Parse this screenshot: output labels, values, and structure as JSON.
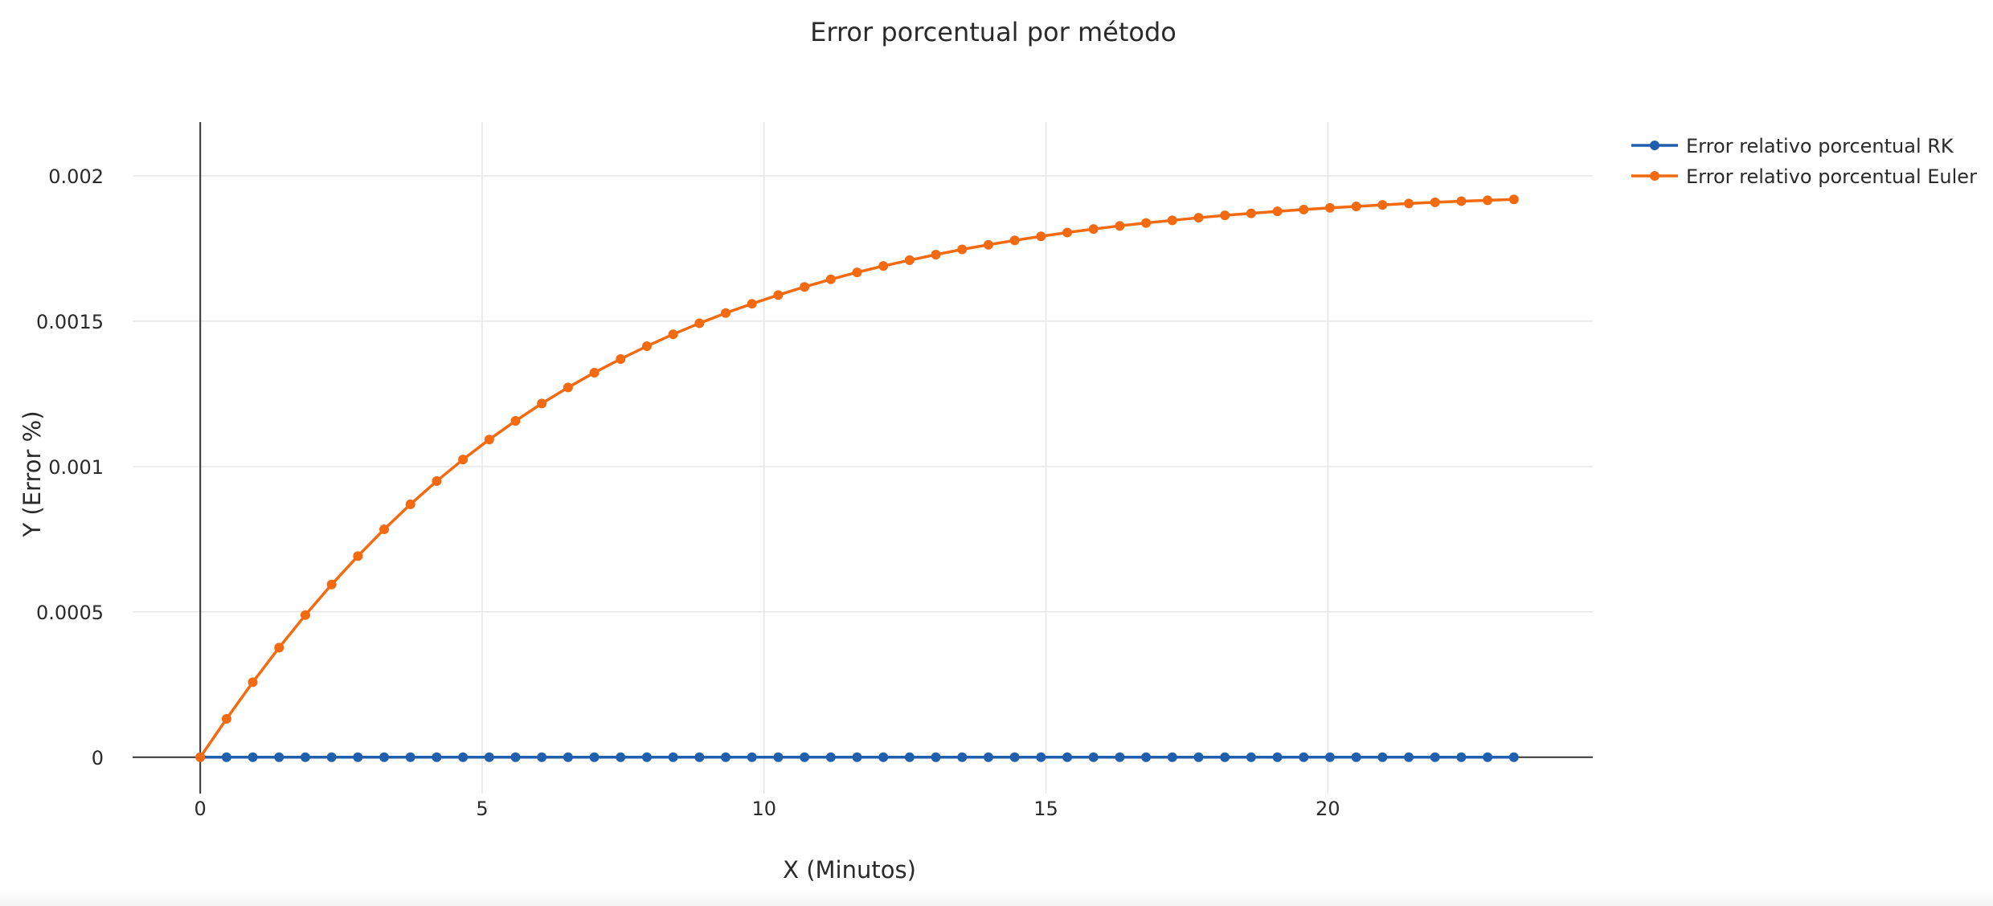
{
  "chart_data": {
    "type": "line",
    "title": "Error porcentual por método",
    "xlabel": "X (Minutos)",
    "ylabel": "Y (Error %)",
    "xlim": [
      -1.2,
      24.7
    ],
    "ylim": [
      -0.000125,
      0.002185
    ],
    "x_ticks": [
      0,
      5,
      10,
      15,
      20
    ],
    "x_tick_labels": [
      "0",
      "5",
      "10",
      "15",
      "20"
    ],
    "y_ticks": [
      0,
      0.0005,
      0.001,
      0.0015,
      0.002
    ],
    "y_tick_labels": [
      "0",
      "0.0005",
      "0.001",
      "0.0015",
      "0.002"
    ],
    "grid": true,
    "legend_position": "top-right",
    "x": [
      0,
      0.466,
      0.932,
      1.398,
      1.864,
      2.33,
      2.796,
      3.262,
      3.728,
      4.194,
      4.66,
      5.126,
      5.592,
      6.058,
      6.524,
      6.99,
      7.456,
      7.922,
      8.388,
      8.854,
      9.32,
      9.786,
      10.252,
      10.718,
      11.184,
      11.65,
      12.116,
      12.582,
      13.048,
      13.514,
      13.98,
      14.446,
      14.912,
      15.378,
      15.844,
      16.31,
      16.776,
      17.242,
      17.708,
      18.174,
      18.64,
      19.106,
      19.572,
      20.038,
      20.504,
      20.97,
      21.436,
      21.902,
      22.368,
      22.834,
      23.3
    ],
    "series": [
      {
        "name": "Error relativo porcentual RK",
        "color": "#1f5fad",
        "values": [
          0,
          0,
          0,
          0,
          0,
          0,
          0,
          0,
          0,
          0,
          0,
          0,
          0,
          0,
          0,
          0,
          0,
          0,
          0,
          0,
          0,
          0,
          0,
          0,
          0,
          0,
          0,
          0,
          0,
          0,
          0,
          0,
          0,
          0,
          0,
          0,
          0,
          0,
          0,
          0,
          0,
          0,
          0,
          0,
          0,
          0,
          0,
          0,
          0,
          0,
          0
        ]
      },
      {
        "name": "Error relativo porcentual Euler",
        "color": "#f36a10",
        "values": [
          0,
          0.000132,
          0.000258,
          0.000377,
          0.000489,
          0.000594,
          0.000692,
          0.000784,
          0.00087,
          0.00095,
          0.001024,
          0.001093,
          0.001157,
          0.001217,
          0.001272,
          0.001323,
          0.00137,
          0.001414,
          0.001455,
          0.001493,
          0.001528,
          0.00156,
          0.00159,
          0.001618,
          0.001644,
          0.001668,
          0.00169,
          0.00171,
          0.001729,
          0.001747,
          0.001763,
          0.001778,
          0.001792,
          0.001805,
          0.001817,
          0.001828,
          0.001838,
          0.001847,
          0.001856,
          0.001864,
          0.001871,
          0.001878,
          0.001884,
          0.00189,
          0.001895,
          0.0019,
          0.001905,
          0.001909,
          0.001913,
          0.001916,
          0.001919
        ]
      }
    ]
  }
}
